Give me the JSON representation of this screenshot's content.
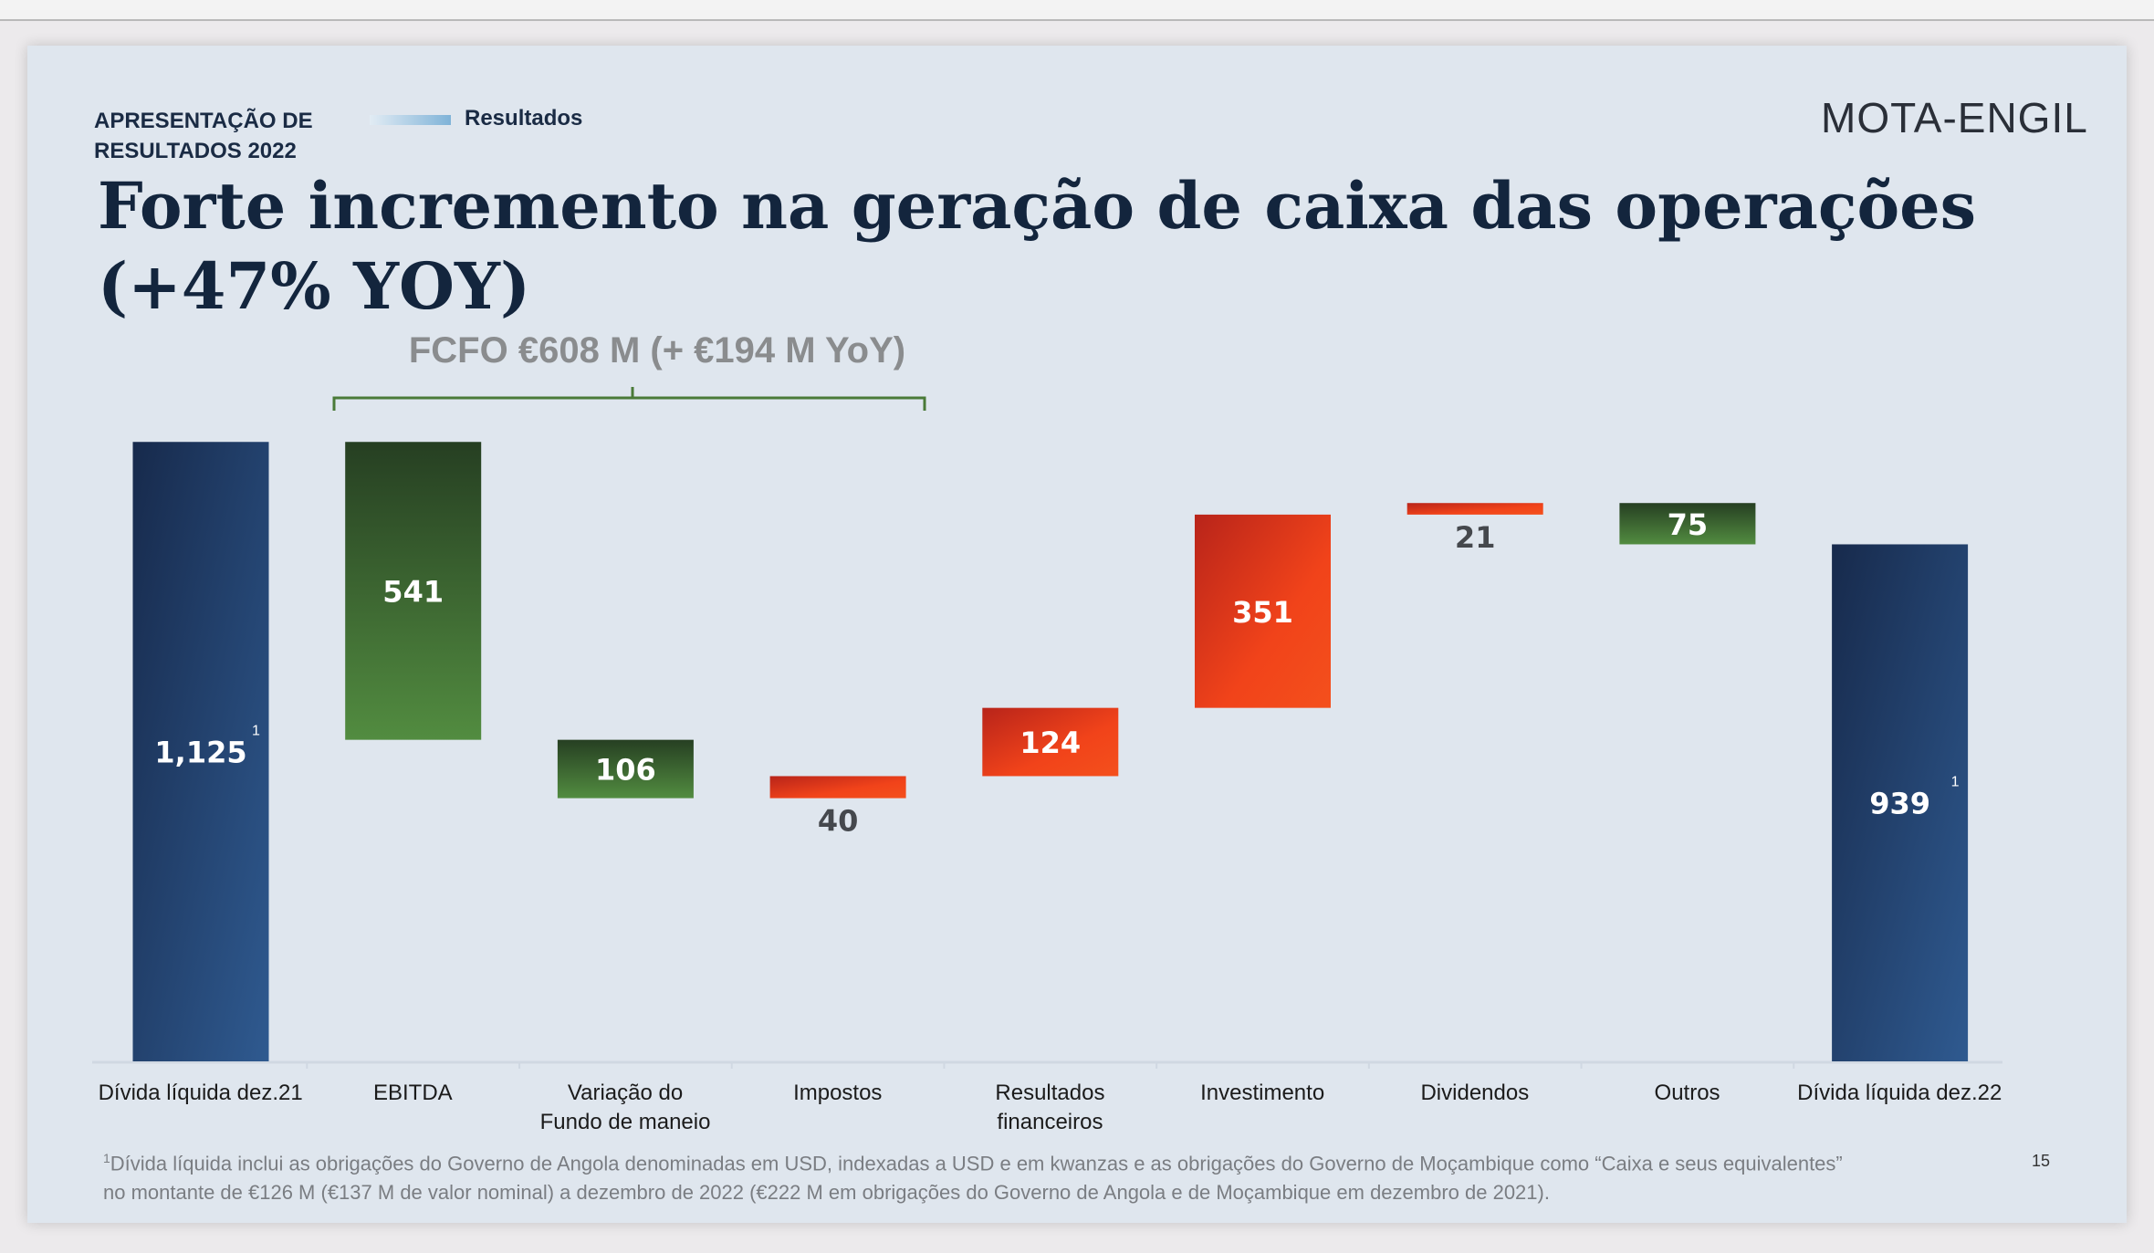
{
  "header": {
    "section_line1": "APRESENTAÇÃO DE",
    "section_line2": "RESULTADOS 2022",
    "tag": "Resultados",
    "logo": "MOTA-ENGIL"
  },
  "title_line1": "Forte incremento na geração de caixa das operações",
  "title_line2": "(+47% YOY)",
  "fcfo_label": "FCFO €608 M (+ €194 M YoY)",
  "chart_data": {
    "type": "waterfall",
    "unit": "€ M",
    "categories": [
      "Dívida líquida dez.21",
      "EBITDA",
      "Variação do Fundo de maneio",
      "Impostos",
      "Resultados financeiros",
      "Investimento",
      "Dividendos",
      "Outros",
      "Dívida líquida dez.22"
    ],
    "category_lines": [
      [
        "Dívida líquida dez.21"
      ],
      [
        "EBITDA"
      ],
      [
        "Variação do",
        "Fundo de maneio"
      ],
      [
        "Impostos"
      ],
      [
        "Resultados",
        "financeiros"
      ],
      [
        "Investimento"
      ],
      [
        "Dividendos"
      ],
      [
        "Outros"
      ],
      [
        "Dívida líquida dez.22"
      ]
    ],
    "values": [
      1125,
      -541,
      -106,
      40,
      124,
      351,
      21,
      -75,
      939
    ],
    "labels": [
      "1,125",
      "541",
      "106",
      "40",
      "124",
      "351",
      "21",
      "75",
      "939"
    ],
    "kinds": [
      "total",
      "decrease",
      "decrease",
      "increase",
      "increase",
      "increase",
      "increase",
      "decrease",
      "total"
    ],
    "footnote_marks": [
      "1",
      "",
      "",
      "",
      "",
      "",
      "",
      "",
      "1"
    ],
    "colors": {
      "total": "#24457a",
      "decrease": "#3f6e34",
      "increase": "#e8401c"
    },
    "ylim": [
      0,
      1125
    ]
  },
  "footnote_mark": "1",
  "footnote_line1": "Dívida líquida inclui as obrigações do Governo de Angola denominadas em USD, indexadas a USD e em kwanzas e as obrigações do Governo de Moçambique como “Caixa e seus equivalentes”",
  "footnote_line2": "no montante de €126 M (€137 M de valor nominal) a dezembro de 2022 (€222 M em obrigações do Governo de Angola e de Moçambique em dezembro de 2021).",
  "page_number": "15"
}
